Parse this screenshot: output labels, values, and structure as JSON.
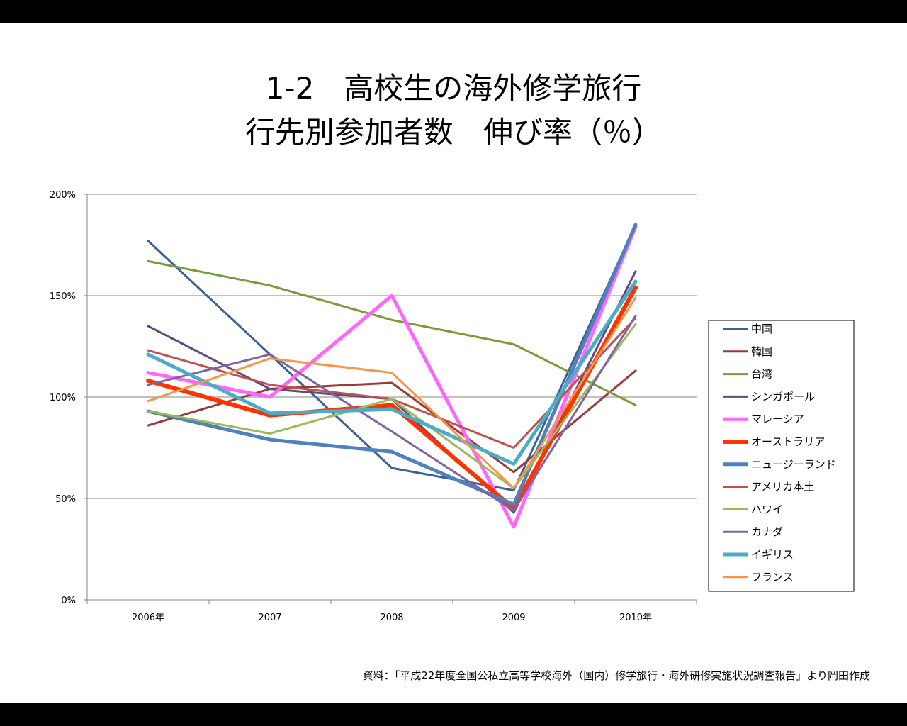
{
  "title": {
    "line1": "1-2　高校生の海外修学旅行",
    "line2": "行先別参加者数　伸び率（％）"
  },
  "source": "資料：「平成22年度全国公私立高等学校海外（国内）修学旅行・海外研修実施状況調査報告」より岡田作成",
  "chart_data": {
    "type": "line",
    "x": [
      "2006年",
      "2007",
      "2008",
      "2009",
      "2010年"
    ],
    "ylim": [
      0,
      200
    ],
    "yticks": [
      0,
      50,
      100,
      150,
      200
    ],
    "ytick_labels": [
      "0%",
      "50%",
      "100%",
      "150%",
      "200%"
    ],
    "grid": true,
    "legend_position": "right",
    "series": [
      {
        "name": "中国",
        "color": "#3b6097",
        "width": 3,
        "values": [
          177,
          121,
          65,
          54,
          185
        ]
      },
      {
        "name": "韓国",
        "color": "#9c3a37",
        "width": 3,
        "values": [
          86,
          104,
          107,
          63,
          113
        ]
      },
      {
        "name": "台湾",
        "color": "#7a9a3b",
        "width": 3,
        "values": [
          167,
          155,
          138,
          126,
          96
        ]
      },
      {
        "name": "シンガポール",
        "color": "#604a7b",
        "width": 3,
        "values": [
          135,
          104,
          99,
          43,
          162
        ]
      },
      {
        "name": "マレーシア",
        "color": "#ff66ff",
        "width": 5,
        "values": [
          112,
          100,
          150,
          36,
          184
        ]
      },
      {
        "name": "オーストラリア",
        "color": "#ff3300",
        "width": 6,
        "values": [
          108,
          91,
          96,
          45,
          154
        ]
      },
      {
        "name": "ニュージーランド",
        "color": "#4f81bd",
        "width": 5,
        "values": [
          93,
          79,
          73,
          47,
          185
        ]
      },
      {
        "name": "アメリカ本土",
        "color": "#c0504d",
        "width": 3,
        "values": [
          123,
          106,
          99,
          75,
          139
        ]
      },
      {
        "name": "ハワイ",
        "color": "#9bbb59",
        "width": 3,
        "values": [
          93,
          82,
          99,
          55,
          136
        ]
      },
      {
        "name": "カナダ",
        "color": "#8064a2",
        "width": 3,
        "values": [
          106,
          121,
          83,
          44,
          140
        ]
      },
      {
        "name": "イギリス",
        "color": "#4bacc6",
        "width": 5,
        "values": [
          121,
          92,
          94,
          67,
          157
        ]
      },
      {
        "name": "フランス",
        "color": "#f79646",
        "width": 3,
        "values": [
          98,
          119,
          112,
          55,
          149
        ]
      }
    ]
  }
}
